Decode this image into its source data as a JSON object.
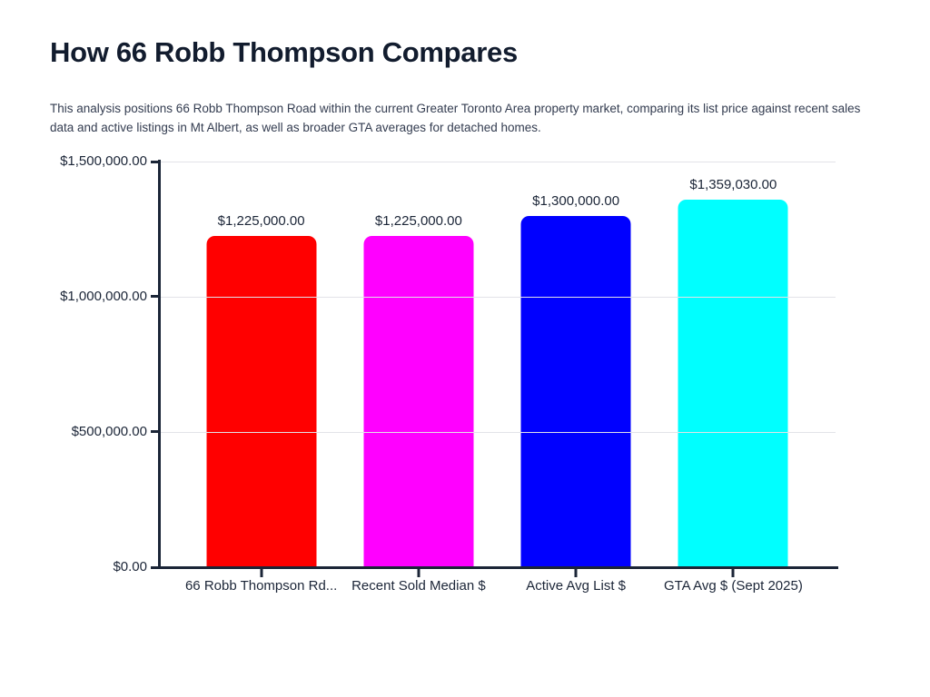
{
  "page": {
    "title": "How 66 Robb Thompson Compares",
    "description": "This analysis positions 66 Robb Thompson Road within the current Greater Toronto Area property market, comparing its list price against recent sales data and active listings in Mt Albert, as well as broader GTA averages for detached homes."
  },
  "chart_data": {
    "type": "bar",
    "title": "How 66 Robb Thompson Compares",
    "categories": [
      "66 Robb Thompson Rd...",
      "Recent Sold Median $",
      "Active Avg List $",
      "GTA Avg $ (Sept 2025)"
    ],
    "values": [
      1225000,
      1225000,
      1300000,
      1359030
    ],
    "value_labels": [
      "$1,225,000.00",
      "$1,225,000.00",
      "$1,300,000.00",
      "$1,359,030.00"
    ],
    "bar_colors": [
      "#ff0000",
      "#ff00ff",
      "#0000ff",
      "#00ffff"
    ],
    "xlabel": "",
    "ylabel": "",
    "ylim": [
      0,
      1500000
    ],
    "y_ticks": [
      0,
      500000,
      1000000,
      1500000
    ],
    "y_tick_labels": [
      "$0.00",
      "$500,000.00",
      "$1,000,000.00",
      "$1,500,000.00"
    ],
    "grid": true,
    "legend": "none",
    "axis_color": "#1b2537",
    "gridline_color": "#e2e3e8",
    "text_color": "#1b2537",
    "background_color": "#ffffff"
  }
}
